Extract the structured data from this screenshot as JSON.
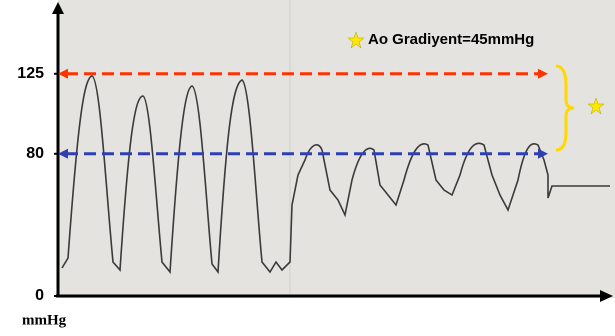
{
  "chart_data": {
    "type": "line",
    "annotation": "Ao Gradiyent=45mmHg",
    "y_label": "mmHg",
    "ylim": [
      0,
      162
    ],
    "yticks": [
      0,
      80,
      125
    ],
    "reference_lines": [
      {
        "value": 125,
        "color": "#ff3300"
      },
      {
        "value": 80,
        "color": "#2f3fb0"
      }
    ]
  }
}
